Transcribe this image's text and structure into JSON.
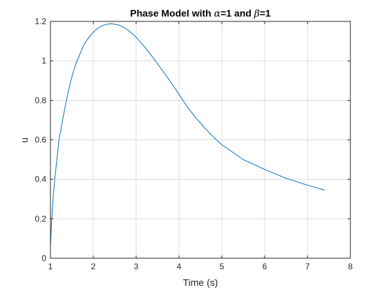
{
  "chart_data": {
    "type": "line",
    "title_prefix": "Phase Model with ",
    "alpha_symbol": "α",
    "alpha_value": "=1 and ",
    "beta_symbol": "β",
    "beta_value": "=1",
    "xlabel": "Time (s)",
    "ylabel": "u",
    "xlim": [
      1,
      8
    ],
    "ylim": [
      0,
      1.2
    ],
    "xticks": [
      "1",
      "2",
      "3",
      "4",
      "5",
      "6",
      "7",
      "8"
    ],
    "yticks": [
      "0",
      "0.2",
      "0.4",
      "0.6",
      "0.8",
      "1",
      "1.2"
    ],
    "grid": true,
    "line_color": "#0072BD",
    "series": [
      {
        "x": [
          1.0,
          1.03,
          1.06,
          1.1,
          1.15,
          1.2,
          1.3,
          1.4,
          1.5,
          1.6,
          1.7,
          1.8,
          1.9,
          2.0,
          2.1,
          2.2,
          2.3,
          2.4,
          2.5,
          2.6,
          2.7,
          2.8,
          3.0,
          3.2,
          3.4,
          3.6,
          3.8,
          4.0,
          4.2,
          4.4,
          4.6,
          4.8,
          5.0,
          5.5,
          6.0,
          6.5,
          7.0,
          7.4
        ],
        "y": [
          0.06,
          0.2,
          0.3,
          0.4,
          0.5,
          0.6,
          0.72,
          0.83,
          0.92,
          0.99,
          1.04,
          1.09,
          1.12,
          1.145,
          1.165,
          1.178,
          1.185,
          1.188,
          1.186,
          1.181,
          1.171,
          1.158,
          1.12,
          1.07,
          1.015,
          0.955,
          0.895,
          0.83,
          0.765,
          0.71,
          0.66,
          0.615,
          0.575,
          0.5,
          0.45,
          0.405,
          0.37,
          0.345
        ]
      }
    ]
  }
}
